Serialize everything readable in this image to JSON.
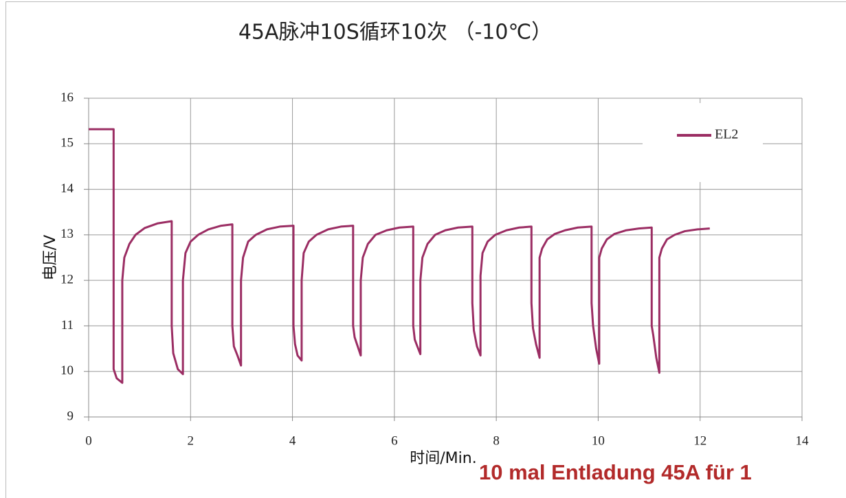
{
  "chart_data": {
    "type": "line",
    "title": "45A脉冲10S循环10次 （-10℃）",
    "x_label": "时间/Min.",
    "y_label": "电压/V",
    "annotation": "10 mal Entladung 45A für 1",
    "xlim": [
      0,
      14
    ],
    "xticks": [
      0,
      2,
      4,
      6,
      8,
      10,
      12,
      14
    ],
    "ylim": [
      9,
      16
    ],
    "yticks": [
      9,
      10,
      11,
      12,
      13,
      14,
      15,
      16
    ],
    "grid": true,
    "legend": "upper right",
    "x": [
      0,
      0.49,
      0.49,
      0.55,
      0.66,
      0.66,
      0.7,
      0.8,
      0.92,
      1.1,
      1.35,
      1.63,
      1.63,
      1.66,
      1.75,
      1.85,
      1.85,
      1.9,
      2.0,
      2.15,
      2.35,
      2.6,
      2.82,
      2.82,
      2.85,
      2.92,
      2.99,
      2.99,
      3.03,
      3.13,
      3.28,
      3.5,
      3.75,
      4.02,
      4.02,
      4.05,
      4.1,
      4.18,
      4.18,
      4.22,
      4.32,
      4.47,
      4.7,
      4.95,
      5.19,
      5.19,
      5.22,
      5.28,
      5.34,
      5.34,
      5.38,
      5.48,
      5.63,
      5.85,
      6.1,
      6.37,
      6.37,
      6.4,
      6.45,
      6.51,
      6.51,
      6.55,
      6.65,
      6.8,
      7.0,
      7.25,
      7.53,
      7.53,
      7.56,
      7.62,
      7.69,
      7.69,
      7.73,
      7.83,
      7.98,
      8.2,
      8.45,
      8.69,
      8.69,
      8.72,
      8.78,
      8.85,
      8.85,
      8.9,
      9.0,
      9.15,
      9.35,
      9.6,
      9.87,
      9.87,
      9.9,
      9.96,
      10.02,
      10.02,
      10.07,
      10.17,
      10.32,
      10.55,
      10.8,
      11.05,
      11.05,
      11.08,
      11.14,
      11.2,
      11.2,
      11.25,
      11.35,
      11.5,
      11.7,
      11.95,
      12.19
    ],
    "series": [
      {
        "name": "EL2",
        "color": "#9b2d63",
        "values": [
          15.32,
          15.32,
          10.05,
          9.85,
          9.75,
          12.0,
          12.5,
          12.8,
          13.0,
          13.15,
          13.25,
          13.3,
          11.0,
          10.4,
          10.05,
          9.94,
          12.0,
          12.6,
          12.85,
          13.0,
          13.12,
          13.2,
          13.23,
          11.0,
          10.55,
          10.35,
          10.13,
          12.0,
          12.5,
          12.85,
          13.0,
          13.12,
          13.18,
          13.2,
          11.0,
          10.6,
          10.35,
          10.24,
          12.0,
          12.6,
          12.85,
          13.0,
          13.12,
          13.18,
          13.2,
          11.0,
          10.75,
          10.55,
          10.35,
          12.0,
          12.5,
          12.8,
          13.0,
          13.1,
          13.16,
          13.18,
          11.0,
          10.7,
          10.55,
          10.38,
          12.0,
          12.5,
          12.8,
          13.0,
          13.1,
          13.16,
          13.18,
          11.5,
          10.9,
          10.55,
          10.35,
          12.1,
          12.6,
          12.85,
          13.0,
          13.1,
          13.16,
          13.18,
          11.5,
          10.95,
          10.6,
          10.3,
          12.5,
          12.7,
          12.9,
          13.02,
          13.1,
          13.16,
          13.18,
          11.5,
          11.0,
          10.5,
          10.17,
          12.5,
          12.7,
          12.9,
          13.02,
          13.1,
          13.14,
          13.16,
          11.0,
          10.8,
          10.3,
          9.97,
          12.5,
          12.7,
          12.9,
          13.0,
          13.08,
          13.12,
          13.14
        ]
      }
    ]
  }
}
